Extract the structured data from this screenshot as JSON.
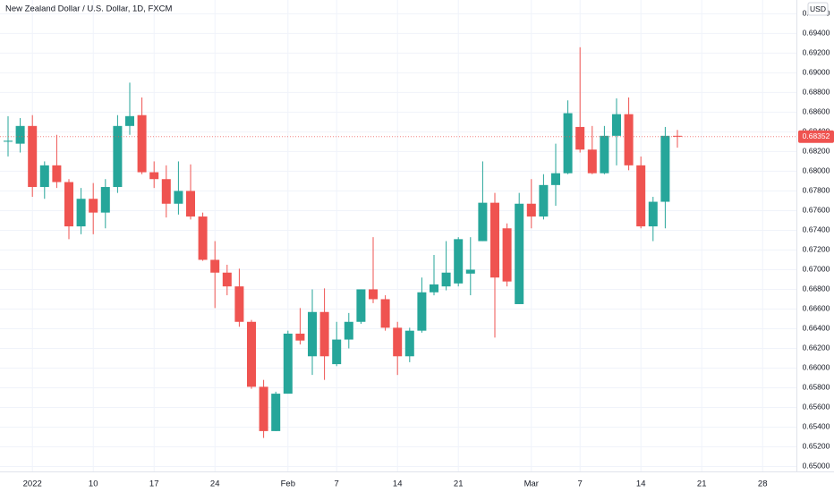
{
  "chart_data": {
    "type": "candlestick",
    "title": "New Zealand Dollar / U.S. Dollar, 1D, FXCM",
    "currency": "USD",
    "up_color": "#26a69a",
    "down_color": "#ef5350",
    "grid": true,
    "categories": [
      null,
      null,
      "2022",
      null,
      null,
      null,
      null,
      "10",
      null,
      null,
      null,
      null,
      "17",
      null,
      null,
      null,
      null,
      "24",
      null,
      null,
      null,
      null,
      null,
      "Feb",
      null,
      null,
      null,
      "7",
      null,
      null,
      null,
      null,
      "14",
      null,
      null,
      null,
      null,
      "21",
      null,
      null,
      null,
      null,
      null,
      "Mar",
      null,
      null,
      null,
      "7",
      null,
      null,
      null,
      null,
      "14",
      null,
      null,
      null,
      null,
      "21",
      null,
      null,
      null,
      null,
      "28"
    ],
    "open": [
      0.683,
      0.6828,
      0.6846,
      0.6784,
      0.6806,
      0.6789,
      0.6744,
      0.6772,
      0.6758,
      0.6784,
      0.6846,
      0.6857,
      0.6799,
      0.6792,
      0.6767,
      0.678,
      0.6754,
      0.671,
      0.6697,
      0.6683,
      0.6647,
      0.6581,
      0.6536,
      0.6574,
      0.6635,
      0.6612,
      0.6657,
      0.6604,
      0.6629,
      0.6647,
      0.668,
      0.667,
      0.6641,
      0.6612,
      0.6638,
      0.6677,
      0.6683,
      0.6686,
      0.6696,
      0.6729,
      0.6768,
      0.6742,
      0.6665,
      0.6767,
      0.6754,
      0.6786,
      0.6798,
      0.6845,
      0.6822,
      0.6798,
      0.6836,
      0.6858,
      0.6806,
      0.6744,
      0.6769,
      0.6836,
      null,
      null,
      null,
      null,
      null,
      null,
      null
    ],
    "high": [
      0.6856,
      0.6854,
      0.6857,
      0.681,
      0.6837,
      0.6792,
      0.6783,
      0.6788,
      0.6792,
      0.6857,
      0.689,
      0.6875,
      0.681,
      0.6806,
      0.681,
      0.6807,
      0.6758,
      0.6729,
      0.6705,
      0.6701,
      0.6649,
      0.6588,
      0.6576,
      0.6638,
      0.6661,
      0.668,
      0.6681,
      0.6647,
      0.6656,
      0.668,
      0.6733,
      0.6674,
      0.6647,
      0.6641,
      0.6692,
      0.6715,
      0.6729,
      0.6733,
      0.6733,
      0.681,
      0.6778,
      0.6747,
      0.6778,
      0.6792,
      0.6797,
      0.6828,
      0.6872,
      0.6926,
      0.6846,
      0.6846,
      0.6874,
      0.6875,
      0.6815,
      0.6774,
      0.6845,
      0.6842,
      null,
      null,
      null,
      null,
      null,
      null,
      null
    ],
    "low": [
      0.6815,
      0.6819,
      0.6774,
      0.6772,
      0.6783,
      0.6731,
      0.6736,
      0.6736,
      0.6742,
      0.6778,
      0.6837,
      0.6797,
      0.6783,
      0.6753,
      0.6756,
      0.6751,
      0.6709,
      0.6661,
      0.6674,
      0.6642,
      0.6579,
      0.6529,
      0.6536,
      0.6574,
      0.6624,
      0.6593,
      0.6588,
      0.6602,
      0.662,
      0.6645,
      0.6666,
      0.6638,
      0.6593,
      0.6606,
      0.6636,
      0.6674,
      0.6679,
      0.6683,
      0.6674,
      0.6729,
      0.6631,
      0.6683,
      0.6665,
      0.6742,
      0.6751,
      0.6765,
      0.6797,
      0.6819,
      0.6797,
      0.6797,
      0.6806,
      0.6801,
      0.6742,
      0.6729,
      0.6742,
      0.6824,
      null,
      null,
      null,
      null,
      null,
      null,
      null
    ],
    "close": [
      0.6831,
      0.6846,
      0.6784,
      0.6806,
      0.6789,
      0.6744,
      0.6772,
      0.6758,
      0.6784,
      0.6846,
      0.6856,
      0.6799,
      0.6792,
      0.6767,
      0.678,
      0.6754,
      0.671,
      0.6697,
      0.6683,
      0.6647,
      0.6581,
      0.6536,
      0.6574,
      0.6635,
      0.6628,
      0.6657,
      0.6612,
      0.6629,
      0.6647,
      0.668,
      0.667,
      0.6641,
      0.6612,
      0.6638,
      0.6677,
      0.6685,
      0.6697,
      0.6731,
      0.67,
      0.6768,
      0.6692,
      0.6688,
      0.6767,
      0.6754,
      0.6786,
      0.6798,
      0.6859,
      0.6822,
      0.6798,
      0.6836,
      0.6858,
      0.6806,
      0.6744,
      0.6769,
      0.6836,
      0.68352,
      null,
      null,
      null,
      null,
      null,
      null,
      null
    ],
    "ylim": [
      0.6495,
      0.6974
    ],
    "yticks": [
      {
        "value": 0.65,
        "label": "0.65000"
      },
      {
        "value": 0.652,
        "label": "0.65200"
      },
      {
        "value": 0.654,
        "label": "0.65400"
      },
      {
        "value": 0.656,
        "label": "0.65600"
      },
      {
        "value": 0.658,
        "label": "0.65800"
      },
      {
        "value": 0.66,
        "label": "0.66000"
      },
      {
        "value": 0.662,
        "label": "0.66200"
      },
      {
        "value": 0.664,
        "label": "0.66400"
      },
      {
        "value": 0.666,
        "label": "0.66600"
      },
      {
        "value": 0.668,
        "label": "0.66800"
      },
      {
        "value": 0.67,
        "label": "0.67000"
      },
      {
        "value": 0.672,
        "label": "0.67200"
      },
      {
        "value": 0.674,
        "label": "0.67400"
      },
      {
        "value": 0.676,
        "label": "0.67600"
      },
      {
        "value": 0.678,
        "label": "0.67800"
      },
      {
        "value": 0.68,
        "label": "0.68000"
      },
      {
        "value": 0.682,
        "label": "0.68200"
      },
      {
        "value": 0.684,
        "label": "0.68400"
      },
      {
        "value": 0.686,
        "label": "0.68600"
      },
      {
        "value": 0.688,
        "label": "0.68800"
      },
      {
        "value": 0.69,
        "label": "0.69000"
      },
      {
        "value": 0.692,
        "label": "0.69200"
      },
      {
        "value": 0.694,
        "label": "0.69400"
      },
      {
        "value": 0.696,
        "label": "0.69600"
      }
    ]
  }
}
